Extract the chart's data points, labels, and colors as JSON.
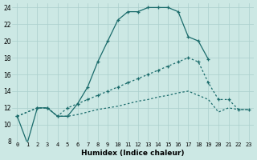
{
  "xlabel": "Humidex (Indice chaleur)",
  "background_color": "#cce8e4",
  "grid_color": "#aacfcc",
  "line_color": "#1a6b6b",
  "xlim": [
    -0.5,
    23.5
  ],
  "ylim": [
    8,
    24.5
  ],
  "yticks": [
    8,
    10,
    12,
    14,
    16,
    18,
    20,
    22,
    24
  ],
  "xticks": [
    0,
    1,
    2,
    3,
    4,
    5,
    6,
    7,
    8,
    9,
    10,
    11,
    12,
    13,
    14,
    15,
    16,
    17,
    18,
    19,
    20,
    21,
    22,
    23
  ],
  "line1_x": [
    0,
    1,
    2,
    3,
    4,
    5,
    6,
    7,
    8,
    9,
    10,
    11,
    12,
    13,
    14,
    15,
    16,
    17,
    18,
    19
  ],
  "line1_y": [
    11.0,
    7.8,
    12.0,
    12.0,
    11.0,
    11.0,
    12.5,
    14.5,
    17.5,
    20.0,
    22.5,
    23.5,
    23.5,
    24.0,
    24.0,
    24.0,
    23.5,
    20.5,
    20.0,
    17.8
  ],
  "line2_x": [
    0,
    2,
    3,
    4,
    5,
    6,
    7,
    8,
    9,
    10,
    11,
    12,
    13,
    14,
    15,
    16,
    17,
    18,
    19,
    20,
    21,
    22,
    23
  ],
  "line2_y": [
    11.0,
    12.0,
    12.0,
    11.0,
    12.0,
    12.5,
    13.0,
    13.5,
    14.0,
    14.5,
    15.0,
    15.5,
    16.0,
    16.5,
    17.0,
    17.5,
    18.0,
    17.5,
    15.0,
    13.0,
    13.0,
    11.8,
    11.8
  ],
  "line3_x": [
    0,
    2,
    3,
    4,
    5,
    6,
    7,
    8,
    9,
    10,
    11,
    12,
    13,
    14,
    15,
    16,
    17,
    18,
    19,
    20,
    21,
    22,
    23
  ],
  "line3_y": [
    11.0,
    12.0,
    12.0,
    11.0,
    11.0,
    11.2,
    11.5,
    11.8,
    12.0,
    12.2,
    12.5,
    12.8,
    13.0,
    13.3,
    13.5,
    13.8,
    14.0,
    13.5,
    13.0,
    11.5,
    12.0,
    11.8,
    11.8
  ]
}
